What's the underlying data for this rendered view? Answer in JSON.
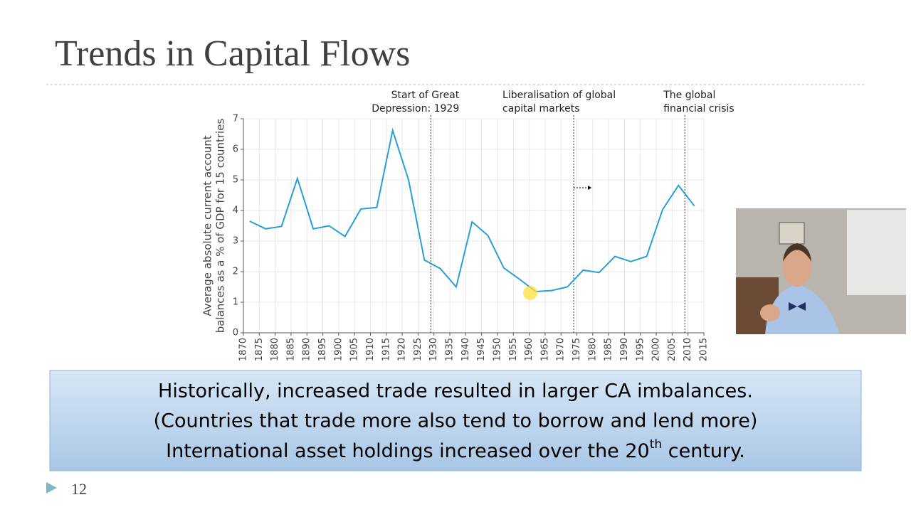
{
  "slide": {
    "title": "Trends in Capital Flows",
    "page_number": "12",
    "callout": {
      "lines": [
        "Historically, increased trade resulted in larger CA imbalances.",
        "(Countries that trade more also tend to borrow and lend more)"
      ],
      "last_line": {
        "before": "International asset holdings increased over the 20",
        "superscript": "th",
        "after": " century."
      }
    }
  },
  "chart_data": {
    "type": "line",
    "y_label": [
      "Average absolute current account",
      "balances as a % of GDP for 15 countries"
    ],
    "x": [
      1872,
      1877,
      1882,
      1887,
      1892,
      1897,
      1902,
      1907,
      1912,
      1917,
      1922,
      1927,
      1932,
      1937,
      1942,
      1947,
      1952,
      1957,
      1962,
      1967,
      1972,
      1977,
      1982,
      1987,
      1992,
      1997,
      2002,
      2007,
      2012
    ],
    "series": [
      {
        "color": "#2a9fd6",
        "values": [
          3.65,
          3.4,
          3.48,
          5.05,
          3.4,
          3.5,
          3.15,
          4.05,
          4.1,
          6.62,
          5.0,
          2.38,
          2.1,
          1.5,
          3.63,
          3.18,
          2.12,
          1.75,
          1.35,
          1.38,
          1.5,
          2.05,
          1.97,
          2.5,
          2.33,
          2.5,
          4.03,
          4.82,
          4.15
        ]
      }
    ],
    "xlim": [
      1870,
      2015
    ],
    "xticks": [
      1870,
      1875,
      1880,
      1885,
      1890,
      1895,
      1900,
      1905,
      1910,
      1915,
      1920,
      1925,
      1930,
      1935,
      1940,
      1945,
      1950,
      1955,
      1960,
      1965,
      1970,
      1975,
      1980,
      1985,
      1990,
      1995,
      2000,
      2005,
      2010,
      2015
    ],
    "ylim": [
      0,
      7
    ],
    "yticks": [
      0,
      1,
      2,
      3,
      4,
      5,
      6,
      7
    ],
    "grid": true,
    "events": [
      {
        "x": 1929,
        "label": [
          "Start of Great",
          "Depression: 1929"
        ],
        "align": "end"
      },
      {
        "x": 1974,
        "label": [
          "Liberalisation of global",
          "capital markets"
        ],
        "align": "end"
      },
      {
        "x": 2009,
        "label": [
          "The global",
          "financial crisis"
        ],
        "align": "end"
      }
    ]
  }
}
